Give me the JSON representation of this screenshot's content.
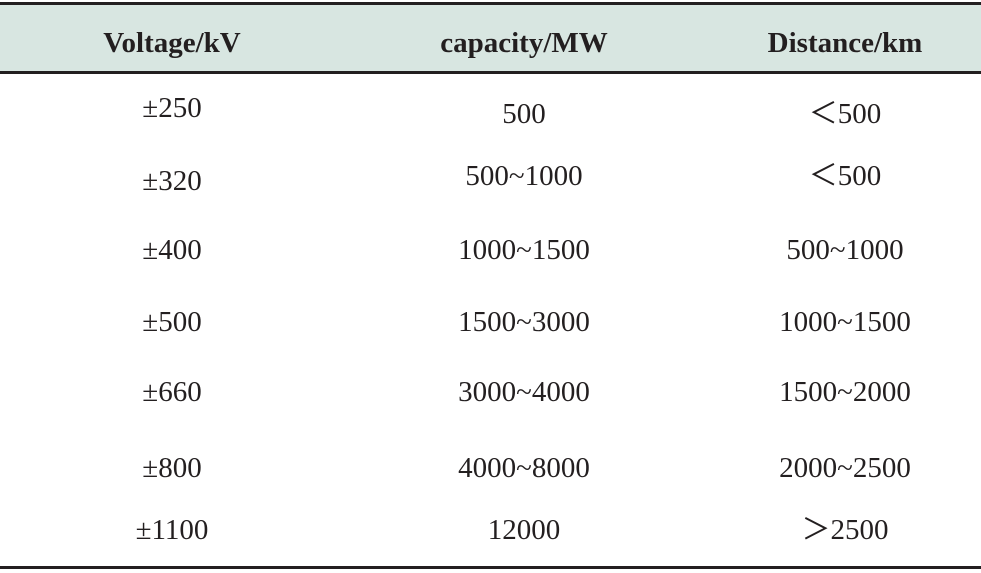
{
  "table": {
    "headers": [
      "Voltage/kV",
      "capacity/MW",
      "Distance/km"
    ],
    "rows": [
      [
        "±250",
        "500",
        "＜500"
      ],
      [
        "±320",
        "500~1000",
        "＜500"
      ],
      [
        "±400",
        "1000~1500",
        "500~1000"
      ],
      [
        "±500",
        "1500~3000",
        "1000~1500"
      ],
      [
        "±660",
        "3000~4000",
        "1500~2000"
      ],
      [
        "±800",
        "4000~8000",
        "2000~2500"
      ],
      [
        "±1100",
        "12000",
        "＞2500"
      ]
    ]
  },
  "colors": {
    "header_background": "#d8e6e1",
    "rule": "#231f20",
    "text": "#231f20"
  }
}
